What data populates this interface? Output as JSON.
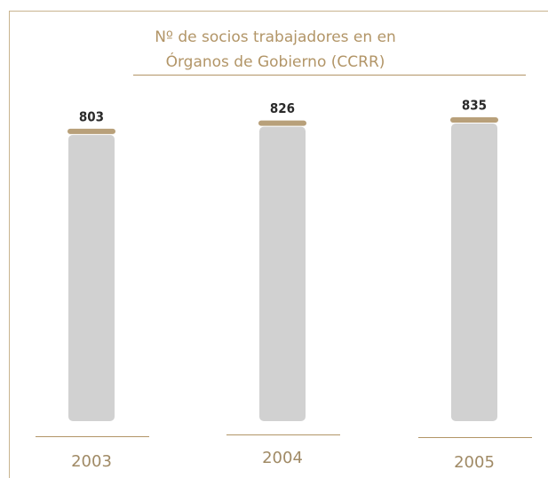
{
  "chart_data": {
    "type": "bar",
    "title": [
      "Nº de socios trabajadores en en",
      "Órganos de Gobierno (CCRR)"
    ],
    "categories": [
      "2003",
      "2004",
      "2005"
    ],
    "values": [
      803,
      826,
      835
    ],
    "color": "#d1d1d1",
    "cap_color": "#b8a07a"
  }
}
